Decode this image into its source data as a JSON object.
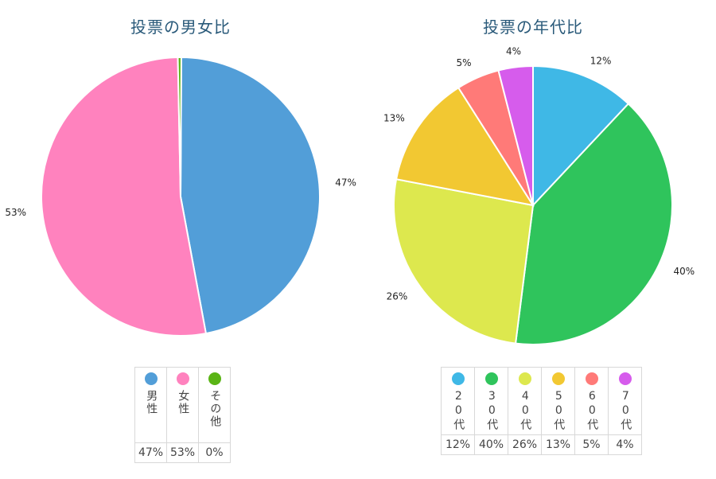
{
  "chart_data": [
    {
      "type": "pie",
      "title": "投票の男女比",
      "categories": [
        "男性",
        "女性",
        "その他"
      ],
      "values": [
        47,
        53,
        0
      ],
      "value_labels": [
        "47%",
        "53%",
        "0%"
      ],
      "slice_labels": [
        "47%",
        "53%",
        ""
      ],
      "colors": [
        "#529ed8",
        "#ff82be",
        "#5ab415"
      ],
      "legend": "bottom"
    },
    {
      "type": "pie",
      "title": "投票の年代比",
      "categories": [
        "20代",
        "30代",
        "40代",
        "50代",
        "60代",
        "70代"
      ],
      "values": [
        12,
        40,
        26,
        13,
        5,
        4
      ],
      "value_labels": [
        "12%",
        "40%",
        "26%",
        "13%",
        "5%",
        "4%"
      ],
      "slice_labels": [
        "12%",
        "40%",
        "26%",
        "13%",
        "5%",
        "4%"
      ],
      "colors": [
        "#3fb8e6",
        "#2fc45c",
        "#dde84e",
        "#f2c832",
        "#ff7a78",
        "#d65cec"
      ],
      "legend": "bottom"
    }
  ]
}
